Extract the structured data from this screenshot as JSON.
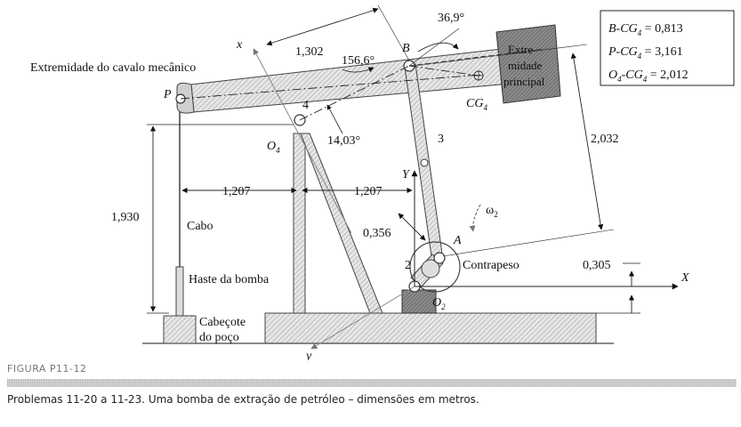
{
  "labels": {
    "extremidade_cavalo": "Extremidade do cavalo mecânico",
    "extremidade_principal_1": "Extre-",
    "extremidade_principal_2": "midade",
    "extremidade_principal_3": "principal",
    "cabo": "Cabo",
    "haste": "Haste da bomba",
    "cabecote_1": "Cabeçote",
    "cabecote_2": "do poço",
    "contrapeso": "Contrapeso",
    "omega": "ω",
    "omega_sub": "2",
    "x_axis": "x",
    "y_axis": "y",
    "X_axis": "X",
    "Y_axis": "Y",
    "P": "P",
    "B": "B",
    "A": "A",
    "O4": "O",
    "O4_sub": "4",
    "O2": "O",
    "O2_sub": "2",
    "CG4": "CG",
    "CG4_sub": "4",
    "link2": "2",
    "link3": "3",
    "link4": "4"
  },
  "dimensions": {
    "d_1302": "1,302",
    "d_1566": "156,6°",
    "d_369": "36,9°",
    "d_1403": "14,03°",
    "d_1207a": "1,207",
    "d_1207b": "1,207",
    "d_1930": "1,930",
    "d_0356": "0,356",
    "d_2032": "2,032",
    "d_0305": "0,305"
  },
  "legend": {
    "line1": "B-CG",
    "line1_sub": "4",
    "line1_val": " = 0,813",
    "line2": "P-CG",
    "line2_sub": "4",
    "line2_val": " = 3,161",
    "line3": "O",
    "line3_sub": "4",
    "line3_mid": "-CG",
    "line3_sub2": "4",
    "line3_val": " = 2,012"
  },
  "caption": {
    "heading": "FIGURA P11-12",
    "text": "Problemas 11-20 a 11-23.   Uma bomba de extração de petróleo – dimensões em metros."
  }
}
